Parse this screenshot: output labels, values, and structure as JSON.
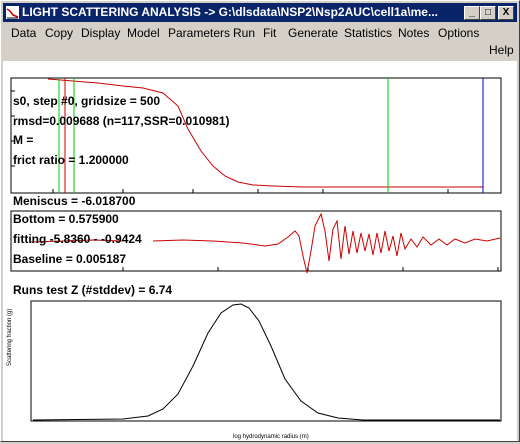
{
  "window": {
    "title": "LIGHT SCATTERING ANALYSIS -> G:\\dlsdata\\NSP2\\Nsp2AUC\\cell1a\\me...",
    "minimize": "_",
    "maximize": "□",
    "close": "X"
  },
  "menu": {
    "data": "Data",
    "copy": "Copy",
    "display": "Display",
    "model": "Model",
    "parameters": "Parameters",
    "run": "Run",
    "fit": "Fit",
    "generate": "Generate",
    "statistics": "Statistics",
    "notes": "Notes",
    "options": "Options",
    "help": "Help"
  },
  "info": {
    "step": "s0, step #0, gridsize = 500",
    "rmsd": "rmsd=0.009688 (n=117,SSR=0.010981)",
    "m": "M =",
    "frict": "frict ratio = 1.200000",
    "meniscus": "Meniscus = -6.018700",
    "bottom": "Bottom = 0.575900",
    "fitting": "fitting -5.8360 - -0.9424",
    "baseline": "Baseline = 0.005187",
    "runs": "Runs test Z (#stddev) = 6.74"
  },
  "bottom_plot": {
    "ylabel": "Scattering fraction (g)",
    "xlabel": "log hydrodynamic radius (m)"
  },
  "colors": {
    "titlebar": "#0a246a",
    "data": "#cc0000",
    "green_marker": "#00cc00",
    "blue_marker": "#0000cc",
    "distribution": "#000000"
  }
}
